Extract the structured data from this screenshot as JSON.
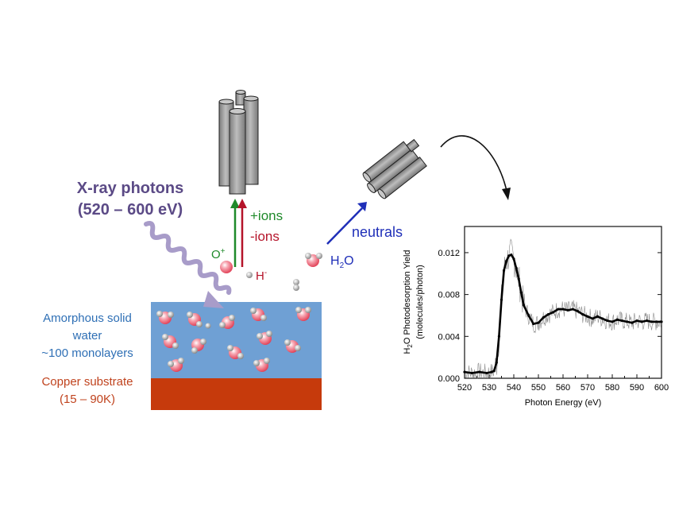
{
  "photons": {
    "line1": "X-ray photons",
    "line2": "(520 – 600 eV)"
  },
  "water_label": {
    "line1": "Amorphous solid",
    "line2": "water",
    "line3": "~100 monolayers"
  },
  "substrate_label": {
    "line1": "Copper substrate",
    "line2": "(15 – 90K)"
  },
  "ions": {
    "plus": "+ions",
    "minus": "-ions"
  },
  "species": {
    "o_plus": "O",
    "o_plus_sup": "+",
    "h_minus": "H",
    "h_minus_sup": "-",
    "h2o_a": "H",
    "h2o_sub": "2",
    "h2o_b": "O"
  },
  "neutrals_label": "neutrals",
  "colors": {
    "water": "#6fa0d4",
    "copper": "#c63a0c",
    "ions_plus": "#1f8a2a",
    "ions_minus": "#b5142a",
    "neutrals": "#1f2fb8",
    "photon": "#a89cc9"
  },
  "chart_data": {
    "type": "line",
    "ylabel_a": "H",
    "ylabel_sub": "2",
    "ylabel_b": "O Photodesorption Yield",
    "ylabel2": "(molecules/photon)",
    "xlabel": "Photon Energy (eV)",
    "xlim": [
      520,
      600
    ],
    "ylim": [
      0,
      0.0145
    ],
    "xticks": [
      "520",
      "530",
      "540",
      "550",
      "560",
      "570",
      "580",
      "590",
      "600"
    ],
    "yticks": [
      "0.000",
      "0.004",
      "0.008",
      "0.012"
    ],
    "series": [
      {
        "x": [
          520,
          523,
          526,
          529,
          531,
          532,
          533,
          534,
          535,
          536,
          537,
          538,
          539,
          540,
          541,
          542,
          543,
          544,
          546,
          548,
          550,
          552,
          554,
          556,
          558,
          560,
          562,
          564,
          566,
          568,
          570,
          572,
          574,
          576,
          578,
          580,
          582,
          584,
          586,
          588,
          590,
          592,
          594,
          596,
          598,
          600
        ],
        "y": [
          0.0006,
          0.0005,
          0.0006,
          0.0005,
          0.0006,
          0.0007,
          0.0015,
          0.004,
          0.0075,
          0.0103,
          0.0112,
          0.0117,
          0.0118,
          0.0114,
          0.0105,
          0.0095,
          0.0082,
          0.007,
          0.006,
          0.0052,
          0.0053,
          0.0058,
          0.0061,
          0.0063,
          0.0066,
          0.0066,
          0.0065,
          0.0066,
          0.0064,
          0.0061,
          0.0059,
          0.0057,
          0.0059,
          0.0057,
          0.0055,
          0.0054,
          0.0056,
          0.0055,
          0.0054,
          0.0053,
          0.0055,
          0.0054,
          0.0055,
          0.0054,
          0.0054,
          0.0054
        ]
      }
    ]
  }
}
